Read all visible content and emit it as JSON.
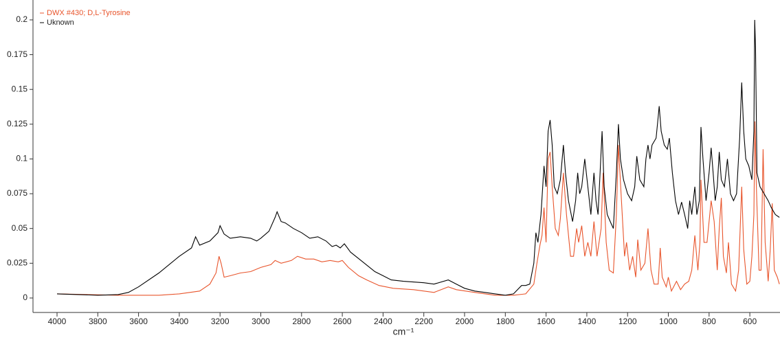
{
  "chart_data": {
    "type": "line",
    "xlabel": "cm⁻¹",
    "xlim": [
      4118,
      452
    ],
    "ylim": [
      -0.0104,
      0.2143
    ],
    "xticks": [
      4000,
      3800,
      3600,
      3400,
      3200,
      3000,
      2800,
      2600,
      2400,
      2200,
      2000,
      1800,
      1600,
      1400,
      1200,
      1000,
      800,
      600
    ],
    "yticks": [
      0,
      0.025,
      0.05,
      0.075,
      0.1,
      0.125,
      0.15,
      0.175,
      0.2
    ],
    "grid": false,
    "legend": "top-left",
    "series": [
      {
        "name": "DWX #430; D,L-Tyrosine",
        "color": "#e8542b",
        "x": [
          4000,
          3700,
          3500,
          3400,
          3300,
          3250,
          3220,
          3205,
          3195,
          3180,
          3150,
          3100,
          3050,
          3000,
          2950,
          2930,
          2900,
          2850,
          2820,
          2780,
          2740,
          2700,
          2660,
          2620,
          2600,
          2570,
          2520,
          2480,
          2420,
          2350,
          2250,
          2150,
          2080,
          2040,
          1950,
          1850,
          1760,
          1700,
          1660,
          1645,
          1630,
          1620,
          1610,
          1600,
          1590,
          1580,
          1570,
          1555,
          1540,
          1530,
          1515,
          1500,
          1480,
          1465,
          1450,
          1440,
          1425,
          1410,
          1395,
          1380,
          1365,
          1350,
          1330,
          1320,
          1305,
          1290,
          1270,
          1255,
          1245,
          1230,
          1215,
          1205,
          1190,
          1175,
          1160,
          1150,
          1135,
          1115,
          1100,
          1085,
          1070,
          1050,
          1040,
          1030,
          1010,
          1000,
          985,
          960,
          940,
          920,
          900,
          885,
          870,
          855,
          845,
          840,
          825,
          810,
          790,
          775,
          760,
          750,
          740,
          730,
          715,
          705,
          690,
          670,
          655,
          640,
          630,
          615,
          600,
          590,
          580,
          575,
          568,
          555,
          545,
          535,
          525,
          510,
          500,
          490,
          480,
          465,
          455
        ],
        "values": [
          0.003,
          0.002,
          0.002,
          0.003,
          0.005,
          0.01,
          0.018,
          0.03,
          0.025,
          0.015,
          0.016,
          0.018,
          0.019,
          0.022,
          0.024,
          0.027,
          0.025,
          0.027,
          0.03,
          0.028,
          0.028,
          0.026,
          0.027,
          0.026,
          0.027,
          0.022,
          0.016,
          0.013,
          0.009,
          0.007,
          0.006,
          0.004,
          0.008,
          0.006,
          0.004,
          0.002,
          0.002,
          0.003,
          0.01,
          0.025,
          0.038,
          0.045,
          0.065,
          0.04,
          0.1,
          0.105,
          0.08,
          0.05,
          0.045,
          0.057,
          0.09,
          0.06,
          0.03,
          0.03,
          0.05,
          0.04,
          0.052,
          0.03,
          0.04,
          0.03,
          0.055,
          0.03,
          0.05,
          0.09,
          0.04,
          0.02,
          0.018,
          0.06,
          0.11,
          0.07,
          0.03,
          0.04,
          0.02,
          0.03,
          0.015,
          0.042,
          0.02,
          0.025,
          0.05,
          0.02,
          0.01,
          0.01,
          0.036,
          0.015,
          0.008,
          0.015,
          0.005,
          0.012,
          0.006,
          0.01,
          0.012,
          0.02,
          0.045,
          0.02,
          0.04,
          0.085,
          0.04,
          0.04,
          0.07,
          0.055,
          0.02,
          0.05,
          0.072,
          0.03,
          0.018,
          0.04,
          0.01,
          0.005,
          0.02,
          0.08,
          0.035,
          0.01,
          0.012,
          0.03,
          0.06,
          0.127,
          0.08,
          0.02,
          0.02,
          0.107,
          0.04,
          0.012,
          0.035,
          0.068,
          0.02,
          0.015,
          0.01
        ]
      },
      {
        "name": "Uknown",
        "color": "#000000",
        "x": [
          4000,
          3800,
          3700,
          3650,
          3600,
          3500,
          3400,
          3340,
          3320,
          3300,
          3250,
          3210,
          3200,
          3180,
          3150,
          3100,
          3050,
          3020,
          3000,
          2960,
          2930,
          2920,
          2900,
          2880,
          2840,
          2800,
          2760,
          2720,
          2680,
          2650,
          2630,
          2610,
          2590,
          2560,
          2500,
          2440,
          2400,
          2360,
          2300,
          2200,
          2150,
          2080,
          2040,
          2000,
          1950,
          1900,
          1850,
          1800,
          1760,
          1720,
          1700,
          1680,
          1660,
          1650,
          1640,
          1625,
          1610,
          1600,
          1590,
          1580,
          1570,
          1560,
          1545,
          1530,
          1515,
          1505,
          1490,
          1470,
          1455,
          1445,
          1435,
          1425,
          1410,
          1395,
          1380,
          1365,
          1355,
          1345,
          1335,
          1325,
          1315,
          1300,
          1285,
          1270,
          1255,
          1245,
          1235,
          1220,
          1200,
          1180,
          1165,
          1155,
          1140,
          1120,
          1110,
          1100,
          1090,
          1080,
          1060,
          1050,
          1045,
          1035,
          1020,
          1005,
          995,
          980,
          965,
          950,
          935,
          920,
          905,
          895,
          885,
          870,
          860,
          848,
          840,
          830,
          815,
          800,
          790,
          780,
          770,
          760,
          750,
          740,
          725,
          710,
          695,
          680,
          665,
          650,
          640,
          630,
          620,
          605,
          590,
          580,
          576,
          572,
          565,
          550,
          530,
          510,
          495,
          475,
          455
        ],
        "values": [
          0.003,
          0.002,
          0.0025,
          0.004,
          0.008,
          0.018,
          0.03,
          0.036,
          0.044,
          0.038,
          0.041,
          0.047,
          0.052,
          0.046,
          0.043,
          0.044,
          0.043,
          0.041,
          0.043,
          0.048,
          0.058,
          0.062,
          0.055,
          0.054,
          0.05,
          0.047,
          0.043,
          0.044,
          0.041,
          0.037,
          0.038,
          0.036,
          0.039,
          0.033,
          0.026,
          0.019,
          0.016,
          0.013,
          0.012,
          0.011,
          0.01,
          0.013,
          0.01,
          0.007,
          0.005,
          0.004,
          0.003,
          0.002,
          0.003,
          0.009,
          0.009,
          0.01,
          0.025,
          0.047,
          0.04,
          0.06,
          0.095,
          0.08,
          0.12,
          0.128,
          0.11,
          0.08,
          0.075,
          0.085,
          0.11,
          0.09,
          0.07,
          0.055,
          0.07,
          0.09,
          0.075,
          0.08,
          0.1,
          0.08,
          0.06,
          0.09,
          0.07,
          0.06,
          0.09,
          0.12,
          0.08,
          0.06,
          0.055,
          0.05,
          0.09,
          0.125,
          0.1,
          0.085,
          0.075,
          0.07,
          0.08,
          0.102,
          0.085,
          0.08,
          0.1,
          0.11,
          0.1,
          0.11,
          0.115,
          0.13,
          0.138,
          0.12,
          0.11,
          0.107,
          0.115,
          0.09,
          0.07,
          0.06,
          0.069,
          0.06,
          0.05,
          0.07,
          0.06,
          0.08,
          0.06,
          0.07,
          0.123,
          0.1,
          0.07,
          0.09,
          0.108,
          0.09,
          0.07,
          0.08,
          0.105,
          0.085,
          0.08,
          0.1,
          0.075,
          0.07,
          0.075,
          0.115,
          0.155,
          0.12,
          0.1,
          0.095,
          0.085,
          0.12,
          0.2,
          0.18,
          0.09,
          0.08,
          0.075,
          0.07,
          0.065,
          0.06,
          0.058
        ]
      }
    ]
  }
}
